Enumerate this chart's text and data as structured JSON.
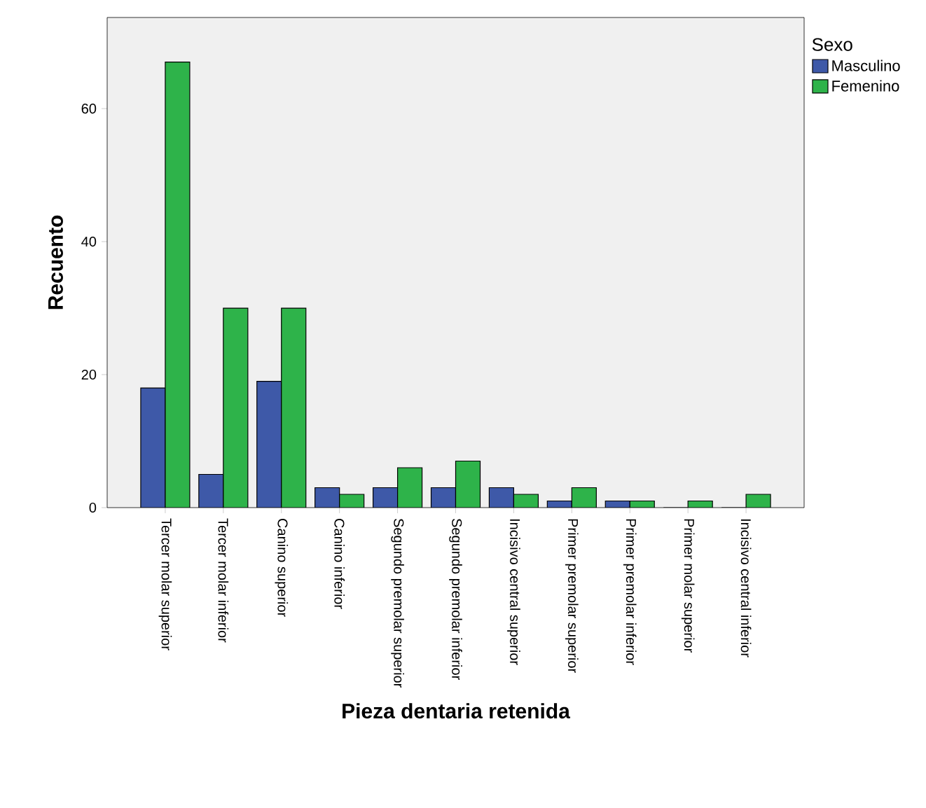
{
  "chart_data": {
    "type": "bar",
    "xlabel": "Pieza dentaria retenida",
    "ylabel": "Recuento",
    "legend_title": "Sexo",
    "categories": [
      "Tercer molar superior",
      "Tercer molar inferior",
      "Canino superior",
      "Canino inferior",
      "Segundo premolar superior",
      "Segundo premolar inferior",
      "Incisivo central superior",
      "Primer premolar superior",
      "Primer premolar inferior",
      "Primer molar superior",
      "Incisivo central inferior"
    ],
    "series": [
      {
        "name": "Masculino",
        "color": "#3e59a8",
        "values": [
          18,
          5,
          19,
          3,
          3,
          3,
          3,
          1,
          1,
          0,
          0
        ]
      },
      {
        "name": "Femenino",
        "color": "#2eb34a",
        "values": [
          67,
          30,
          30,
          2,
          6,
          7,
          2,
          3,
          1,
          1,
          2
        ]
      }
    ],
    "ylim": [
      0,
      73.7
    ],
    "yticks": [
      0,
      20,
      40,
      60
    ],
    "grid": false,
    "legend": "top right"
  }
}
